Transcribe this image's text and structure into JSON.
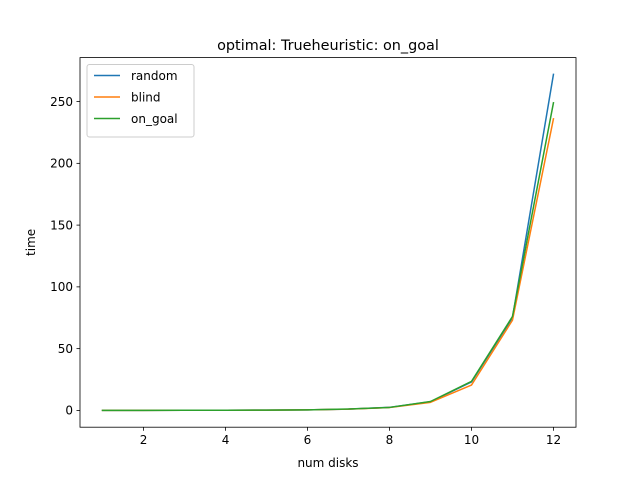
{
  "chart_data": {
    "type": "line",
    "title": "optimal: Trueheuristic: on_goal",
    "xlabel": "num disks",
    "ylabel": "time",
    "xlim": [
      0.45,
      12.55
    ],
    "ylim": [
      -13.6,
      285.6
    ],
    "xticks": [
      2,
      4,
      6,
      8,
      10,
      12
    ],
    "yticks": [
      0,
      50,
      100,
      150,
      200,
      250
    ],
    "legend_position": "upper-left",
    "x": [
      1,
      2,
      3,
      4,
      5,
      6,
      7,
      8,
      9,
      10,
      11,
      12
    ],
    "series": [
      {
        "name": "random",
        "color": "#1f77b4",
        "values": [
          0.02,
          0.05,
          0.1,
          0.15,
          0.25,
          0.45,
          1.0,
          2.5,
          7.0,
          23.0,
          75.0,
          272.0
        ]
      },
      {
        "name": "blind",
        "color": "#ff7f0e",
        "values": [
          0.02,
          0.05,
          0.1,
          0.15,
          0.25,
          0.45,
          1.0,
          2.3,
          6.5,
          20.5,
          73.0,
          236.0
        ]
      },
      {
        "name": "on_goal",
        "color": "#2ca02c",
        "values": [
          0.02,
          0.05,
          0.1,
          0.15,
          0.25,
          0.45,
          1.1,
          2.4,
          7.2,
          23.5,
          76.0,
          249.0
        ]
      }
    ]
  }
}
